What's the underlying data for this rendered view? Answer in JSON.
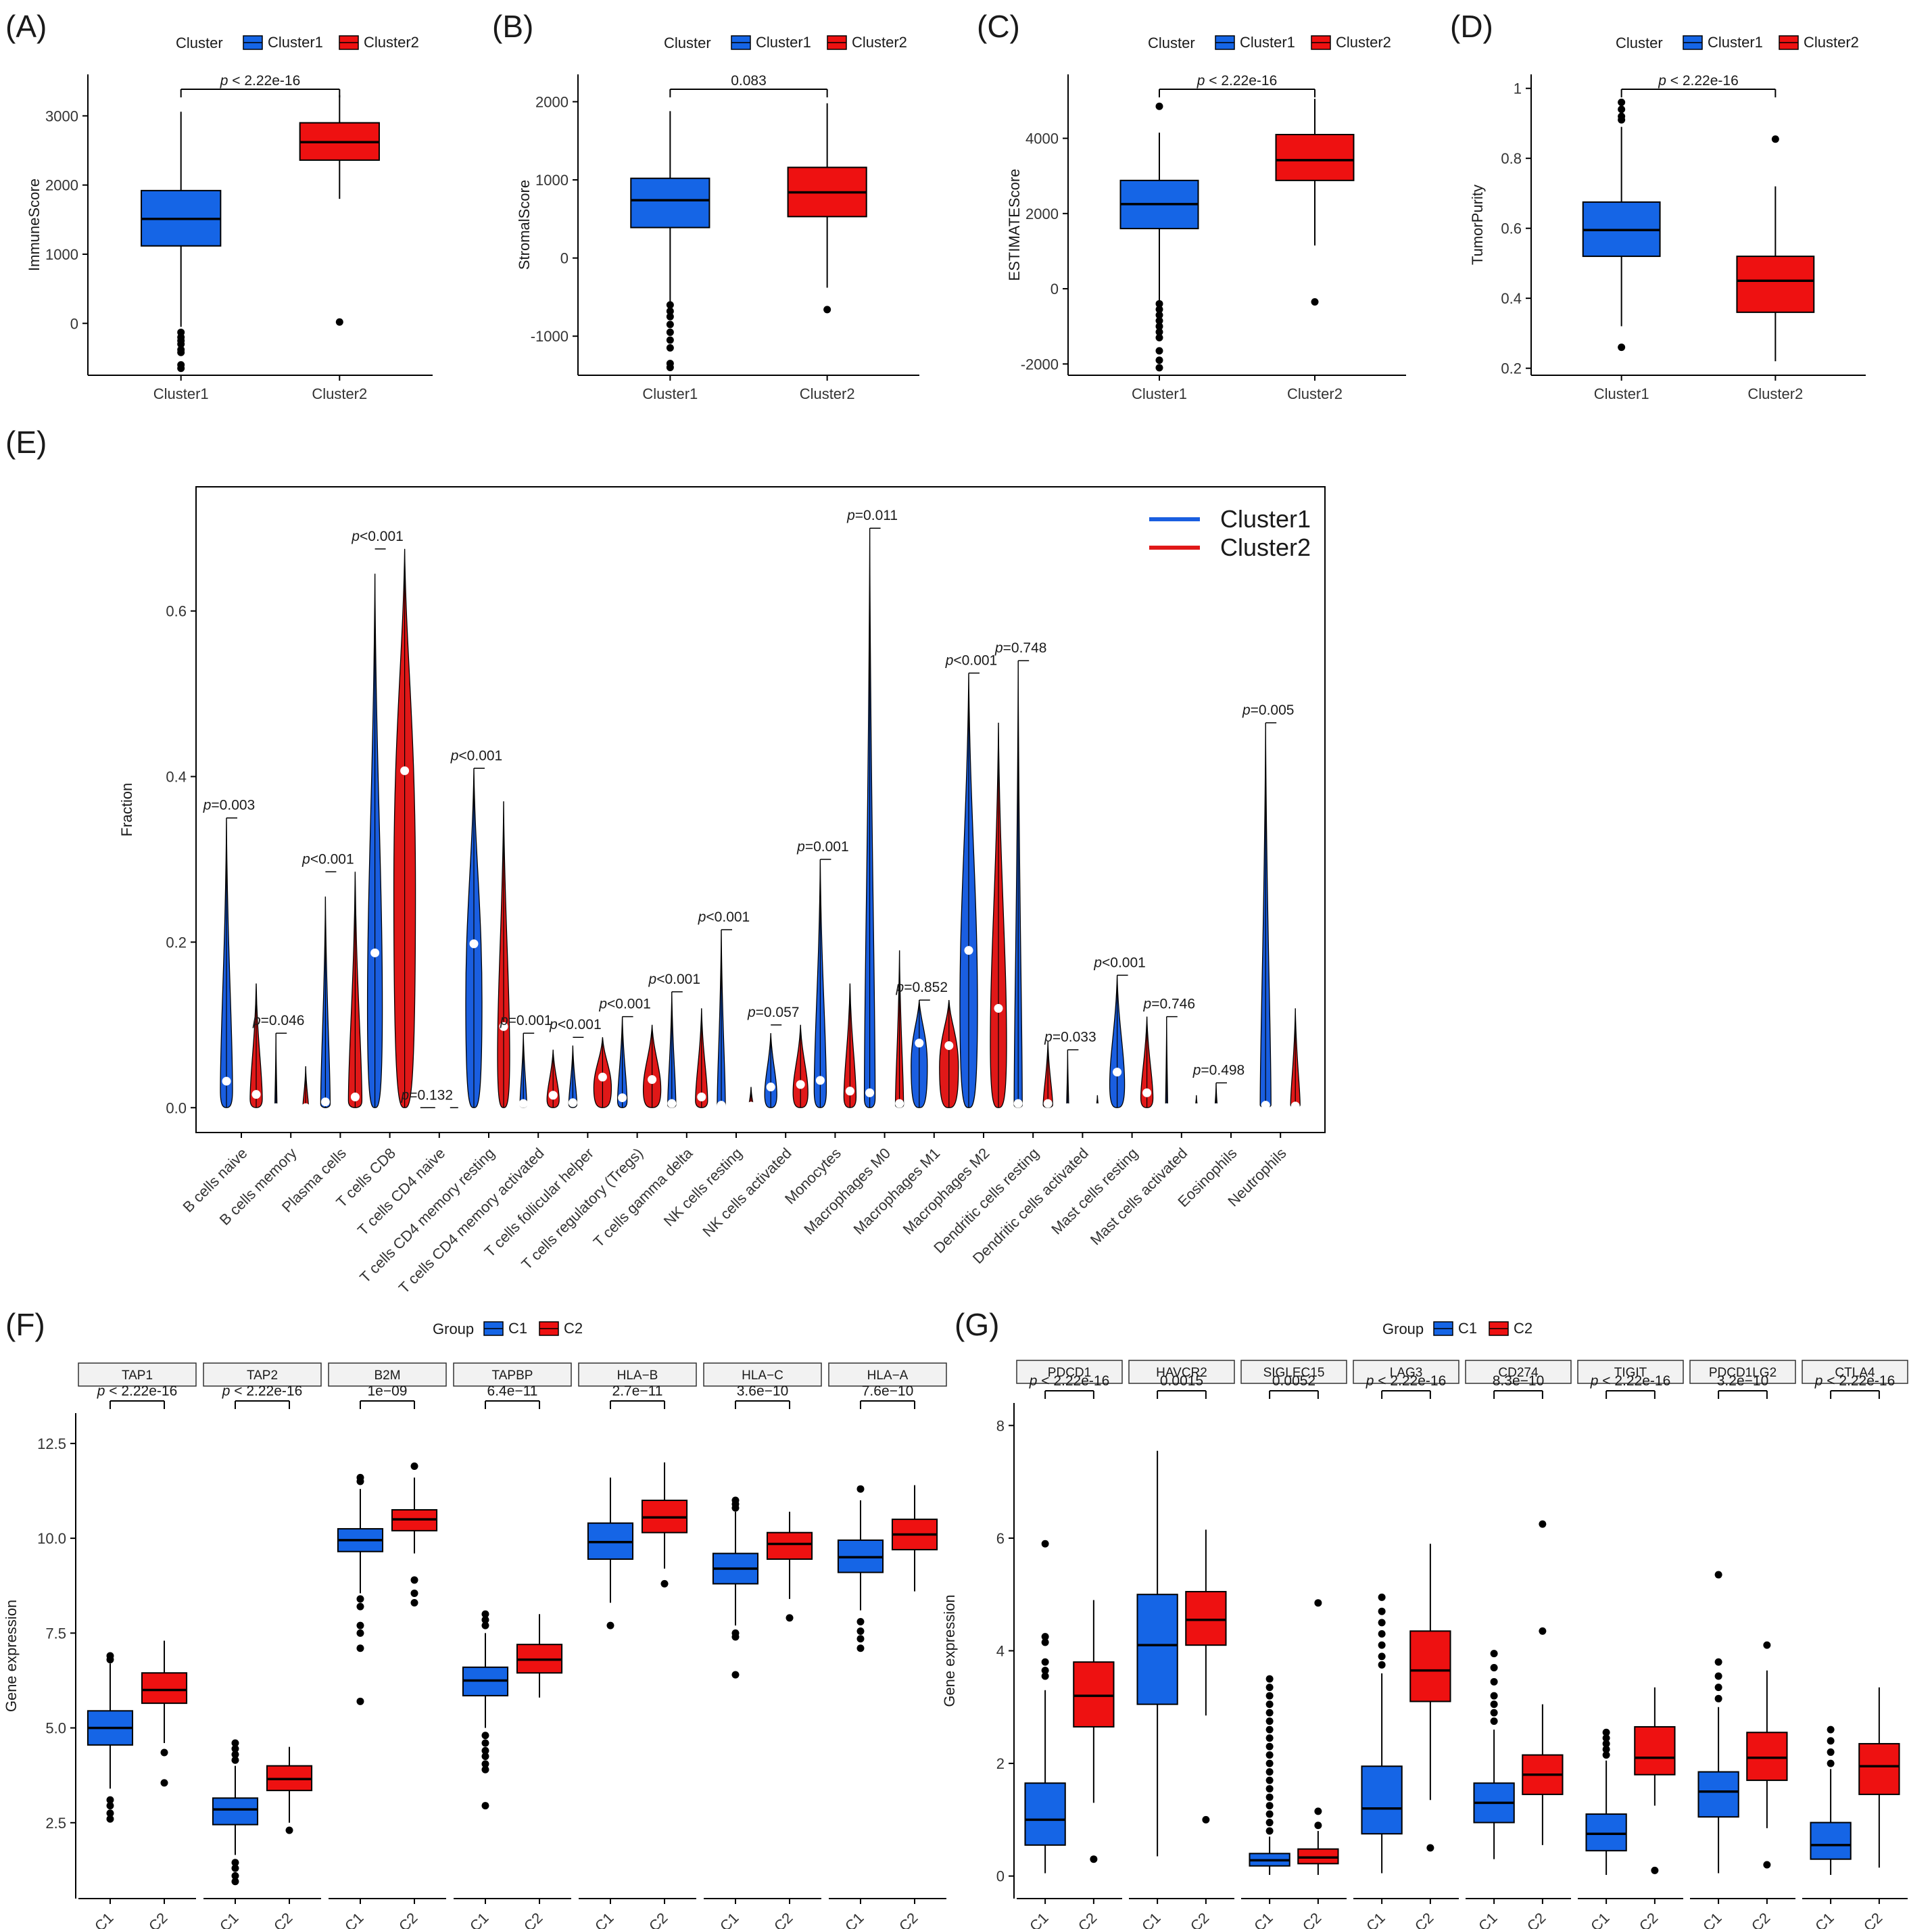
{
  "colors": {
    "cluster1": "#1565e6",
    "cluster2": "#ee1111",
    "violin1": "#1a5ee0",
    "violin2": "#e01818"
  },
  "chart_data": [
    {
      "panel": "(A)",
      "type": "box",
      "legend": {
        "title": "Cluster",
        "entries": [
          "Cluster1",
          "Cluster2"
        ]
      },
      "ylabel": "ImmuneScore",
      "ylim": [
        -750,
        3600
      ],
      "yticks": [
        0,
        1000,
        2000,
        3000
      ],
      "categories": [
        "Cluster1",
        "Cluster2"
      ],
      "pvalue": "p < 2.22e-16",
      "boxes": [
        {
          "q1": 1120,
          "median": 1510,
          "q3": 1920,
          "whislo": -50,
          "whishi": 3060,
          "outliers": [
            -130,
            -200,
            -250,
            -300,
            -380,
            -420,
            -600,
            -650
          ]
        },
        {
          "q1": 2360,
          "median": 2620,
          "q3": 2900,
          "whislo": 1800,
          "whishi": 3300,
          "outliers": [
            20
          ]
        }
      ]
    },
    {
      "panel": "(B)",
      "type": "box",
      "legend": {
        "title": "Cluster",
        "entries": [
          "Cluster1",
          "Cluster2"
        ]
      },
      "ylabel": "StromalScore",
      "ylim": [
        -1500,
        2350
      ],
      "yticks": [
        -1000,
        0,
        1000,
        2000
      ],
      "categories": [
        "Cluster1",
        "Cluster2"
      ],
      "pvalue": "0.083",
      "boxes": [
        {
          "q1": 390,
          "median": 740,
          "q3": 1020,
          "whislo": -560,
          "whishi": 1880,
          "outliers": [
            -600,
            -680,
            -750,
            -850,
            -950,
            -1050,
            -1150,
            -1350,
            -1400
          ]
        },
        {
          "q1": 530,
          "median": 840,
          "q3": 1160,
          "whislo": -380,
          "whishi": 1980,
          "outliers": [
            -660
          ]
        }
      ]
    },
    {
      "panel": "(C)",
      "type": "box",
      "legend": {
        "title": "Cluster",
        "entries": [
          "Cluster1",
          "Cluster2"
        ]
      },
      "ylabel": "ESTIMATEScore",
      "ylim": [
        -2300,
        5700
      ],
      "yticks": [
        -2000,
        0,
        2000,
        4000
      ],
      "categories": [
        "Cluster1",
        "Cluster2"
      ],
      "pvalue": "p < 2.22e-16",
      "boxes": [
        {
          "q1": 1600,
          "median": 2250,
          "q3": 2880,
          "whislo": -360,
          "whishi": 4150,
          "outliers": [
            4850,
            -400,
            -550,
            -700,
            -850,
            -1000,
            -1150,
            -1300,
            -1650,
            -1900,
            -2100
          ]
        },
        {
          "q1": 2880,
          "median": 3420,
          "q3": 4100,
          "whislo": 1150,
          "whishi": 5050,
          "outliers": [
            -350
          ]
        }
      ]
    },
    {
      "panel": "(D)",
      "type": "box",
      "legend": {
        "title": "Cluster",
        "entries": [
          "Cluster1",
          "Cluster2"
        ]
      },
      "ylabel": "TumorPurity",
      "ylim": [
        0.18,
        1.04
      ],
      "yticks": [
        0.2,
        0.4,
        0.6,
        0.8,
        1.0
      ],
      "categories": [
        "Cluster1",
        "Cluster2"
      ],
      "pvalue": "p < 2.22e-16",
      "boxes": [
        {
          "q1": 0.52,
          "median": 0.595,
          "q3": 0.675,
          "whislo": 0.32,
          "whishi": 0.89,
          "outliers": [
            0.91,
            0.92,
            0.94,
            0.96,
            0.26
          ]
        },
        {
          "q1": 0.36,
          "median": 0.45,
          "q3": 0.52,
          "whislo": 0.22,
          "whishi": 0.72,
          "outliers": [
            0.855
          ]
        }
      ]
    },
    {
      "panel": "(E)",
      "type": "violin",
      "ylabel": "Fraction",
      "ylim": [
        -0.03,
        0.75
      ],
      "yticks": [
        0.0,
        0.2,
        0.4,
        0.6
      ],
      "legend": [
        "Cluster1",
        "Cluster2"
      ],
      "categories": [
        "B cells naive",
        "B cells memory",
        "Plasma cells",
        "T cells CD8",
        "T cells CD4 naive",
        "T cells CD4 memory resting",
        "T cells CD4 memory activated",
        "T cells follicular helper",
        "T cells regulatory (Tregs)",
        "T cells gamma delta",
        "NK cells resting",
        "NK cells activated",
        "Monocytes",
        "Macrophages M0",
        "Macrophages M1",
        "Macrophages M2",
        "Dendritic cells resting",
        "Dendritic cells activated",
        "Mast cells resting",
        "Mast cells activated",
        "Eosinophils",
        "Neutrophils"
      ],
      "pvalues": [
        "p=0.003",
        "p=0.046",
        "p<0.001",
        "p<0.001",
        "p=0.132",
        "p<0.001",
        "p=0.001",
        "p<0.001",
        "p<0.001",
        "p<0.001",
        "p<0.001",
        "p=0.057",
        "p=0.001",
        "p=0.011",
        "p=0.852",
        "p<0.001",
        "p=0.748",
        "p=0.033",
        "p<0.001",
        "p=0.746",
        "p=0.498",
        "p=0.005"
      ],
      "cluster1": {
        "max": [
          0.35,
          0.09,
          0.255,
          0.645,
          0.0,
          0.41,
          0.09,
          0.075,
          0.11,
          0.14,
          0.215,
          0.09,
          0.3,
          0.7,
          0.13,
          0.525,
          0.54,
          0.07,
          0.16,
          0.11,
          0.03,
          0.465
        ],
        "median": [
          0.032,
          0.0,
          0.007,
          0.187,
          0.0,
          0.198,
          0.005,
          0.006,
          0.012,
          0.005,
          0.003,
          0.025,
          0.033,
          0.018,
          0.078,
          0.19,
          0.005,
          0.0,
          0.043,
          0.0,
          0.0,
          0.003
        ],
        "width": [
          0.45,
          0.05,
          0.35,
          0.55,
          0.02,
          0.6,
          0.25,
          0.3,
          0.35,
          0.3,
          0.3,
          0.45,
          0.45,
          0.4,
          0.6,
          0.65,
          0.3,
          0.05,
          0.55,
          0.05,
          0.05,
          0.4
        ]
      },
      "cluster2": {
        "max": [
          0.15,
          0.05,
          0.285,
          0.675,
          0.0,
          0.37,
          0.07,
          0.085,
          0.1,
          0.12,
          0.025,
          0.1,
          0.15,
          0.19,
          0.13,
          0.465,
          0.08,
          0.015,
          0.11,
          0.015,
          0.005,
          0.12
        ],
        "median": [
          0.016,
          0.0,
          0.013,
          0.407,
          0.0,
          0.098,
          0.015,
          0.037,
          0.034,
          0.013,
          0.002,
          0.028,
          0.02,
          0.005,
          0.075,
          0.12,
          0.005,
          0.0,
          0.018,
          0.0,
          0.0,
          0.002
        ],
        "width": [
          0.45,
          0.2,
          0.5,
          0.8,
          0.02,
          0.45,
          0.45,
          0.65,
          0.65,
          0.45,
          0.15,
          0.55,
          0.45,
          0.3,
          0.7,
          0.6,
          0.35,
          0.05,
          0.45,
          0.05,
          0.05,
          0.35
        ]
      }
    },
    {
      "panel": "(F)",
      "type": "faceted_box",
      "legend": {
        "title": "Group",
        "entries": [
          "C1",
          "C2"
        ]
      },
      "ylabel": "Gene expression",
      "ylim": [
        0.5,
        13.3
      ],
      "yticks": [
        2.5,
        5.0,
        7.5,
        10.0,
        12.5
      ],
      "categories": [
        "C1",
        "C2"
      ],
      "facets": [
        {
          "label": "TAP1",
          "pvalue": "p < 2.22e-16",
          "boxes": [
            {
              "q1": 4.55,
              "median": 5.0,
              "q3": 5.45,
              "whislo": 3.4,
              "whishi": 6.7,
              "outliers": [
                6.8,
                6.9,
                3.1,
                2.95,
                2.75,
                2.6
              ]
            },
            {
              "q1": 5.65,
              "median": 6.0,
              "q3": 6.45,
              "whislo": 4.6,
              "whishi": 7.3,
              "outliers": [
                4.35,
                3.55
              ]
            }
          ]
        },
        {
          "label": "TAP2",
          "pvalue": "p < 2.22e-16",
          "boxes": [
            {
              "q1": 2.45,
              "median": 2.85,
              "q3": 3.15,
              "whislo": 1.65,
              "whishi": 4.0,
              "outliers": [
                4.15,
                4.3,
                4.45,
                4.6,
                1.45,
                1.3,
                1.1,
                0.95
              ]
            },
            {
              "q1": 3.35,
              "median": 3.65,
              "q3": 4.0,
              "whislo": 2.5,
              "whishi": 4.5,
              "outliers": [
                2.3
              ]
            }
          ]
        },
        {
          "label": "B2M",
          "pvalue": "1e−09",
          "boxes": [
            {
              "q1": 9.65,
              "median": 9.95,
              "q3": 10.25,
              "whislo": 8.55,
              "whishi": 11.3,
              "outliers": [
                11.5,
                11.6,
                8.4,
                8.2,
                7.7,
                7.5,
                7.1,
                5.7
              ]
            },
            {
              "q1": 10.2,
              "median": 10.5,
              "q3": 10.75,
              "whislo": 9.6,
              "whishi": 11.6,
              "outliers": [
                11.9,
                8.9,
                8.55,
                8.3
              ]
            }
          ]
        },
        {
          "label": "TAPBP",
          "pvalue": "6.4e−11",
          "boxes": [
            {
              "q1": 5.85,
              "median": 6.25,
              "q3": 6.6,
              "whislo": 5.0,
              "whishi": 7.5,
              "outliers": [
                7.7,
                7.85,
                8.0,
                4.8,
                4.6,
                4.4,
                4.25,
                4.05,
                3.9,
                2.95
              ]
            },
            {
              "q1": 6.45,
              "median": 6.8,
              "q3": 7.2,
              "whislo": 5.8,
              "whishi": 8.0,
              "outliers": []
            }
          ]
        },
        {
          "label": "HLA−B",
          "pvalue": "2.7e−11",
          "boxes": [
            {
              "q1": 9.45,
              "median": 9.9,
              "q3": 10.4,
              "whislo": 8.3,
              "whishi": 11.6,
              "outliers": [
                7.7
              ]
            },
            {
              "q1": 10.15,
              "median": 10.55,
              "q3": 11.0,
              "whislo": 9.2,
              "whishi": 12.0,
              "outliers": [
                8.8
              ]
            }
          ]
        },
        {
          "label": "HLA−C",
          "pvalue": "3.6e−10",
          "boxes": [
            {
              "q1": 8.8,
              "median": 9.2,
              "q3": 9.6,
              "whislo": 7.7,
              "whishi": 10.7,
              "outliers": [
                10.8,
                10.9,
                11.0,
                7.5,
                7.4,
                6.4
              ]
            },
            {
              "q1": 9.45,
              "median": 9.85,
              "q3": 10.15,
              "whislo": 8.4,
              "whishi": 10.7,
              "outliers": [
                7.9
              ]
            }
          ]
        },
        {
          "label": "HLA−A",
          "pvalue": "7.6e−10",
          "boxes": [
            {
              "q1": 9.1,
              "median": 9.5,
              "q3": 9.95,
              "whislo": 8.1,
              "whishi": 11.0,
              "outliers": [
                11.3,
                7.8,
                7.55,
                7.35,
                7.1
              ]
            },
            {
              "q1": 9.7,
              "median": 10.1,
              "q3": 10.5,
              "whislo": 8.6,
              "whishi": 11.4,
              "outliers": []
            }
          ]
        }
      ]
    },
    {
      "panel": "(G)",
      "type": "faceted_box",
      "legend": {
        "title": "Group",
        "entries": [
          "C1",
          "C2"
        ]
      },
      "ylabel": "Gene expression",
      "ylim": [
        -0.4,
        8.4
      ],
      "yticks": [
        0,
        2,
        4,
        6,
        8
      ],
      "categories": [
        "C1",
        "C2"
      ],
      "facets": [
        {
          "label": "PDCD1",
          "pvalue": "p < 2.22e-16",
          "boxes": [
            {
              "q1": 0.55,
              "median": 1.0,
              "q3": 1.65,
              "whislo": 0.05,
              "whishi": 3.3,
              "outliers": [
                3.55,
                3.65,
                3.8,
                4.15,
                4.25,
                5.9
              ]
            },
            {
              "q1": 2.65,
              "median": 3.2,
              "q3": 3.8,
              "whislo": 1.3,
              "whishi": 4.9,
              "outliers": [
                0.3
              ]
            }
          ]
        },
        {
          "label": "HAVCR2",
          "pvalue": "0.0015",
          "boxes": [
            {
              "q1": 3.05,
              "median": 4.1,
              "q3": 5.0,
              "whislo": 0.35,
              "whishi": 7.55,
              "outliers": []
            },
            {
              "q1": 4.1,
              "median": 4.55,
              "q3": 5.05,
              "whislo": 2.85,
              "whishi": 6.15,
              "outliers": [
                1.0
              ]
            }
          ]
        },
        {
          "label": "SIGLEC15",
          "pvalue": "0.0052",
          "boxes": [
            {
              "q1": 0.18,
              "median": 0.28,
              "q3": 0.4,
              "whislo": 0.02,
              "whishi": 0.7,
              "outliers": [
                0.8,
                0.95,
                1.1,
                1.25,
                1.4,
                1.55,
                1.7,
                1.85,
                2.0,
                2.15,
                2.3,
                2.45,
                2.6,
                2.75,
                2.9,
                3.05,
                3.2,
                3.35,
                3.5
              ]
            },
            {
              "q1": 0.22,
              "median": 0.33,
              "q3": 0.48,
              "whislo": 0.02,
              "whishi": 0.8,
              "outliers": [
                0.9,
                1.15,
                4.85
              ]
            }
          ]
        },
        {
          "label": "LAG3",
          "pvalue": "p < 2.22e-16",
          "boxes": [
            {
              "q1": 0.75,
              "median": 1.2,
              "q3": 1.95,
              "whislo": 0.05,
              "whishi": 3.6,
              "outliers": [
                3.75,
                3.9,
                4.1,
                4.3,
                4.5,
                4.7,
                4.95
              ]
            },
            {
              "q1": 3.1,
              "median": 3.65,
              "q3": 4.35,
              "whislo": 1.35,
              "whishi": 5.9,
              "outliers": [
                0.5
              ]
            }
          ]
        },
        {
          "label": "CD274",
          "pvalue": "8.3e−10",
          "boxes": [
            {
              "q1": 0.95,
              "median": 1.3,
              "q3": 1.65,
              "whislo": 0.3,
              "whishi": 2.6,
              "outliers": [
                2.75,
                2.9,
                3.05,
                3.2,
                3.45,
                3.7,
                3.95
              ]
            },
            {
              "q1": 1.45,
              "median": 1.8,
              "q3": 2.15,
              "whislo": 0.55,
              "whishi": 3.05,
              "outliers": [
                4.35,
                6.25
              ]
            }
          ]
        },
        {
          "label": "TIGIT",
          "pvalue": "p < 2.22e-16",
          "boxes": [
            {
              "q1": 0.45,
              "median": 0.75,
              "q3": 1.1,
              "whislo": 0.02,
              "whishi": 2.05,
              "outliers": [
                2.15,
                2.25,
                2.35,
                2.45,
                2.55
              ]
            },
            {
              "q1": 1.8,
              "median": 2.1,
              "q3": 2.65,
              "whislo": 1.25,
              "whishi": 3.35,
              "outliers": [
                0.1
              ]
            }
          ]
        },
        {
          "label": "PDCD1LG2",
          "pvalue": "3.2e−10",
          "boxes": [
            {
              "q1": 1.05,
              "median": 1.5,
              "q3": 1.85,
              "whislo": 0.05,
              "whishi": 3.0,
              "outliers": [
                3.15,
                3.35,
                3.55,
                3.8,
                5.35
              ]
            },
            {
              "q1": 1.7,
              "median": 2.1,
              "q3": 2.55,
              "whislo": 0.85,
              "whishi": 3.65,
              "outliers": [
                4.1,
                0.2
              ]
            }
          ]
        },
        {
          "label": "CTLA4",
          "pvalue": "p < 2.22e-16",
          "boxes": [
            {
              "q1": 0.3,
              "median": 0.55,
              "q3": 0.95,
              "whislo": 0.02,
              "whishi": 1.9,
              "outliers": [
                2.0,
                2.2,
                2.4,
                2.6
              ]
            },
            {
              "q1": 1.45,
              "median": 1.95,
              "q3": 2.35,
              "whislo": 0.15,
              "whishi": 3.35,
              "outliers": []
            }
          ]
        }
      ]
    }
  ]
}
